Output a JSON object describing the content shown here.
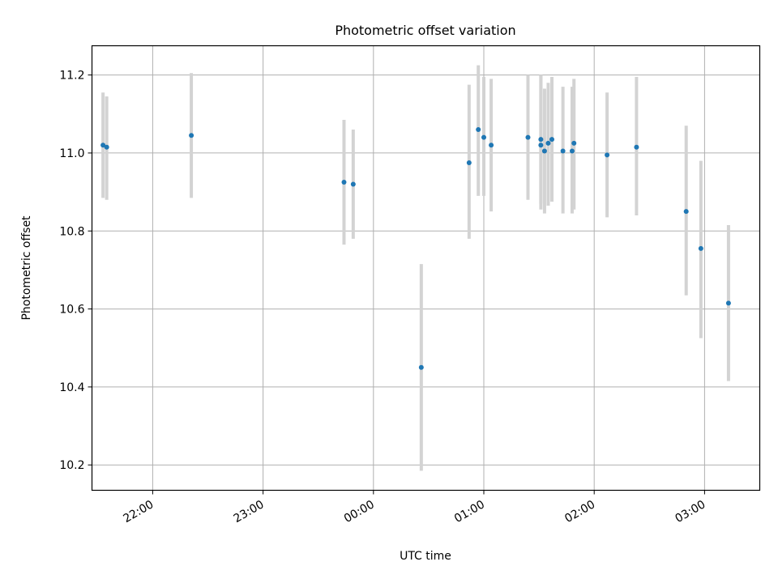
{
  "chart_data": {
    "type": "scatter",
    "title": "Photometric offset variation",
    "xlabel": "UTC time",
    "ylabel": "Photometric offset",
    "x_ticks": [
      "22:00",
      "23:00",
      "00:00",
      "01:00",
      "02:00",
      "03:00"
    ],
    "y_ticks": [
      "10.2",
      "10.4",
      "10.6",
      "10.8",
      "11.0",
      "11.2"
    ],
    "xlim": [
      "21:27",
      "03:30"
    ],
    "ylim": [
      10.135,
      11.275
    ],
    "grid": true,
    "colors": {
      "point": "#1f77b4",
      "errorbar": "#d3d3d3",
      "grid": "#b0b0b0"
    },
    "points": [
      {
        "x": "21:33",
        "y": 11.02,
        "err_low": 10.885,
        "err_high": 11.155
      },
      {
        "x": "21:35",
        "y": 11.015,
        "err_low": 10.88,
        "err_high": 11.145
      },
      {
        "x": "22:21",
        "y": 11.045,
        "err_low": 10.885,
        "err_high": 11.205
      },
      {
        "x": "23:44",
        "y": 10.925,
        "err_low": 10.765,
        "err_high": 11.085
      },
      {
        "x": "23:49",
        "y": 10.92,
        "err_low": 10.78,
        "err_high": 11.06
      },
      {
        "x": "00:26",
        "y": 10.45,
        "err_low": 10.185,
        "err_high": 10.715
      },
      {
        "x": "00:52",
        "y": 10.975,
        "err_low": 10.78,
        "err_high": 11.175
      },
      {
        "x": "00:57",
        "y": 11.06,
        "err_low": 10.89,
        "err_high": 11.225
      },
      {
        "x": "01:00",
        "y": 11.04,
        "err_low": 10.89,
        "err_high": 11.195
      },
      {
        "x": "01:04",
        "y": 11.02,
        "err_low": 10.85,
        "err_high": 11.19
      },
      {
        "x": "01:24",
        "y": 11.04,
        "err_low": 10.88,
        "err_high": 11.2
      },
      {
        "x": "01:31",
        "y": 11.02,
        "err_low": 10.855,
        "err_high": 11.2
      },
      {
        "x": "01:31",
        "y": 11.035,
        "err_low": 10.87,
        "err_high": 11.2
      },
      {
        "x": "01:33",
        "y": 11.005,
        "err_low": 10.845,
        "err_high": 11.165
      },
      {
        "x": "01:35",
        "y": 11.025,
        "err_low": 10.865,
        "err_high": 11.18
      },
      {
        "x": "01:37",
        "y": 11.035,
        "err_low": 10.875,
        "err_high": 11.195
      },
      {
        "x": "01:43",
        "y": 11.005,
        "err_low": 10.845,
        "err_high": 11.17
      },
      {
        "x": "01:48",
        "y": 11.005,
        "err_low": 10.845,
        "err_high": 11.17
      },
      {
        "x": "01:49",
        "y": 11.025,
        "err_low": 10.855,
        "err_high": 11.19
      },
      {
        "x": "02:07",
        "y": 10.995,
        "err_low": 10.835,
        "err_high": 11.155
      },
      {
        "x": "02:23",
        "y": 11.015,
        "err_low": 10.84,
        "err_high": 11.195
      },
      {
        "x": "02:50",
        "y": 10.85,
        "err_low": 10.635,
        "err_high": 11.07
      },
      {
        "x": "02:58",
        "y": 10.755,
        "err_low": 10.525,
        "err_high": 10.98
      },
      {
        "x": "03:13",
        "y": 10.615,
        "err_low": 10.415,
        "err_high": 10.815
      }
    ]
  }
}
